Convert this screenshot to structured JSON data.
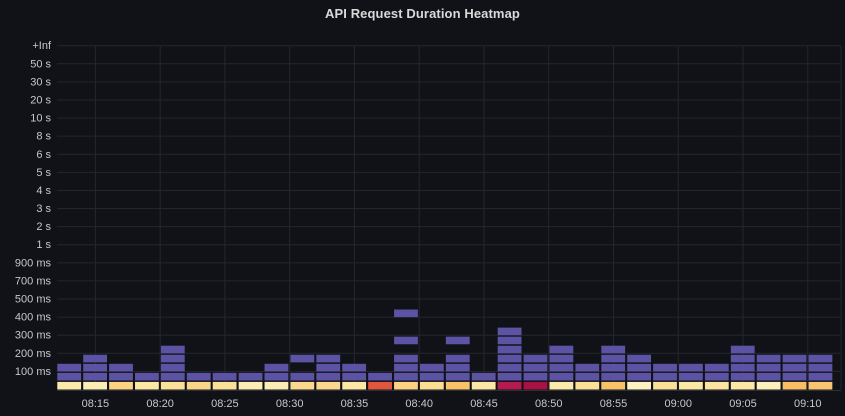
{
  "panel": {
    "title": "API Request Duration Heatmap"
  },
  "chart_data": {
    "type": "heatmap",
    "title": "API Request Duration Heatmap",
    "x_axis": {
      "tick_labels": [
        "08:15",
        "08:20",
        "08:25",
        "08:30",
        "08:35",
        "08:40",
        "08:45",
        "08:50",
        "08:55",
        "09:00",
        "09:05",
        "09:10"
      ],
      "bucket_interval_minutes": 2
    },
    "y_axis": {
      "bucket_boundary_labels_top_to_bottom": [
        "+Inf",
        "50 s",
        "30 s",
        "20 s",
        "10 s",
        "8 s",
        "6 s",
        "5 s",
        "4 s",
        "3 s",
        "2 s",
        "1 s",
        "900 ms",
        "700 ms",
        "500 ms",
        "400 ms",
        "300 ms",
        "200 ms",
        "100 ms"
      ],
      "total_bucket_rows": 38,
      "rows_per_labeled_interval": 2
    },
    "colors": {
      "cell_purple": "#5c53a4",
      "cell_red": "#e0573e",
      "cell_crimson_dark": "#a81144",
      "cell_crimson": "#b51a50"
    },
    "columns": [
      {
        "time": "08:13",
        "purple_rows": [
          2,
          3
        ],
        "bottom_color": "#fceba8"
      },
      {
        "time": "08:15",
        "purple_rows": [
          2,
          3,
          4
        ],
        "bottom_color": "#fcedb5"
      },
      {
        "time": "08:17",
        "purple_rows": [
          2,
          3
        ],
        "bottom_color": "#fbd382"
      },
      {
        "time": "08:19",
        "purple_rows": [
          2
        ],
        "bottom_color": "#fce8a4"
      },
      {
        "time": "08:21",
        "purple_rows": [
          2,
          3,
          4,
          5
        ],
        "bottom_color": "#fbe099"
      },
      {
        "time": "08:23",
        "purple_rows": [
          2
        ],
        "bottom_color": "#fbd68a"
      },
      {
        "time": "08:25",
        "purple_rows": [
          2
        ],
        "bottom_color": "#fbe099"
      },
      {
        "time": "08:27",
        "purple_rows": [
          2
        ],
        "bottom_color": "#fcedb5"
      },
      {
        "time": "08:29",
        "purple_rows": [
          2,
          3
        ],
        "bottom_color": "#fcedb5"
      },
      {
        "time": "08:31",
        "purple_rows": [
          2,
          4
        ],
        "bottom_color": "#fbd88d"
      },
      {
        "time": "08:33",
        "purple_rows": [
          2,
          3,
          4
        ],
        "bottom_color": "#fbd88d"
      },
      {
        "time": "08:35",
        "purple_rows": [
          2,
          3
        ],
        "bottom_color": "#fce8a4"
      },
      {
        "time": "08:37",
        "purple_rows": [
          2
        ],
        "bottom_color": "#e0573e"
      },
      {
        "time": "08:39",
        "purple_rows": [
          2,
          3,
          4,
          6,
          9
        ],
        "bottom_color": "#fbd382"
      },
      {
        "time": "08:41",
        "purple_rows": [
          2,
          3
        ],
        "bottom_color": "#fbdd94"
      },
      {
        "time": "08:43",
        "purple_rows": [
          2,
          3,
          4,
          6
        ],
        "bottom_color": "#f9c268"
      },
      {
        "time": "08:45",
        "purple_rows": [
          2
        ],
        "bottom_color": "#fce8a4"
      },
      {
        "time": "08:47",
        "purple_rows": [
          2,
          3,
          4,
          5,
          6,
          7
        ],
        "bottom_color": "#b51a50"
      },
      {
        "time": "08:49",
        "purple_rows": [
          2,
          3,
          4
        ],
        "bottom_color": "#a81144"
      },
      {
        "time": "08:51",
        "purple_rows": [
          2,
          3,
          4,
          5
        ],
        "bottom_color": "#fceba8"
      },
      {
        "time": "08:53",
        "purple_rows": [
          2,
          3
        ],
        "bottom_color": "#fbe099"
      },
      {
        "time": "08:55",
        "purple_rows": [
          2,
          3,
          4,
          5
        ],
        "bottom_color": "#f9c268"
      },
      {
        "time": "08:57",
        "purple_rows": [
          2,
          3,
          4
        ],
        "bottom_color": "#fdf2c0"
      },
      {
        "time": "08:59",
        "purple_rows": [
          2,
          3
        ],
        "bottom_color": "#fbe099"
      },
      {
        "time": "09:01",
        "purple_rows": [
          2,
          3
        ],
        "bottom_color": "#fce8a4"
      },
      {
        "time": "09:03",
        "purple_rows": [
          2,
          3
        ],
        "bottom_color": "#fbe3a0"
      },
      {
        "time": "09:05",
        "purple_rows": [
          2,
          3,
          4,
          5
        ],
        "bottom_color": "#fce8a4"
      },
      {
        "time": "09:07",
        "purple_rows": [
          2,
          3,
          4
        ],
        "bottom_color": "#fdf0bc"
      },
      {
        "time": "09:09",
        "purple_rows": [
          2,
          3,
          4
        ],
        "bottom_color": "#f9bd63"
      },
      {
        "time": "09:11",
        "purple_rows": [
          2,
          3,
          4
        ],
        "bottom_color": "#fac573"
      }
    ]
  }
}
